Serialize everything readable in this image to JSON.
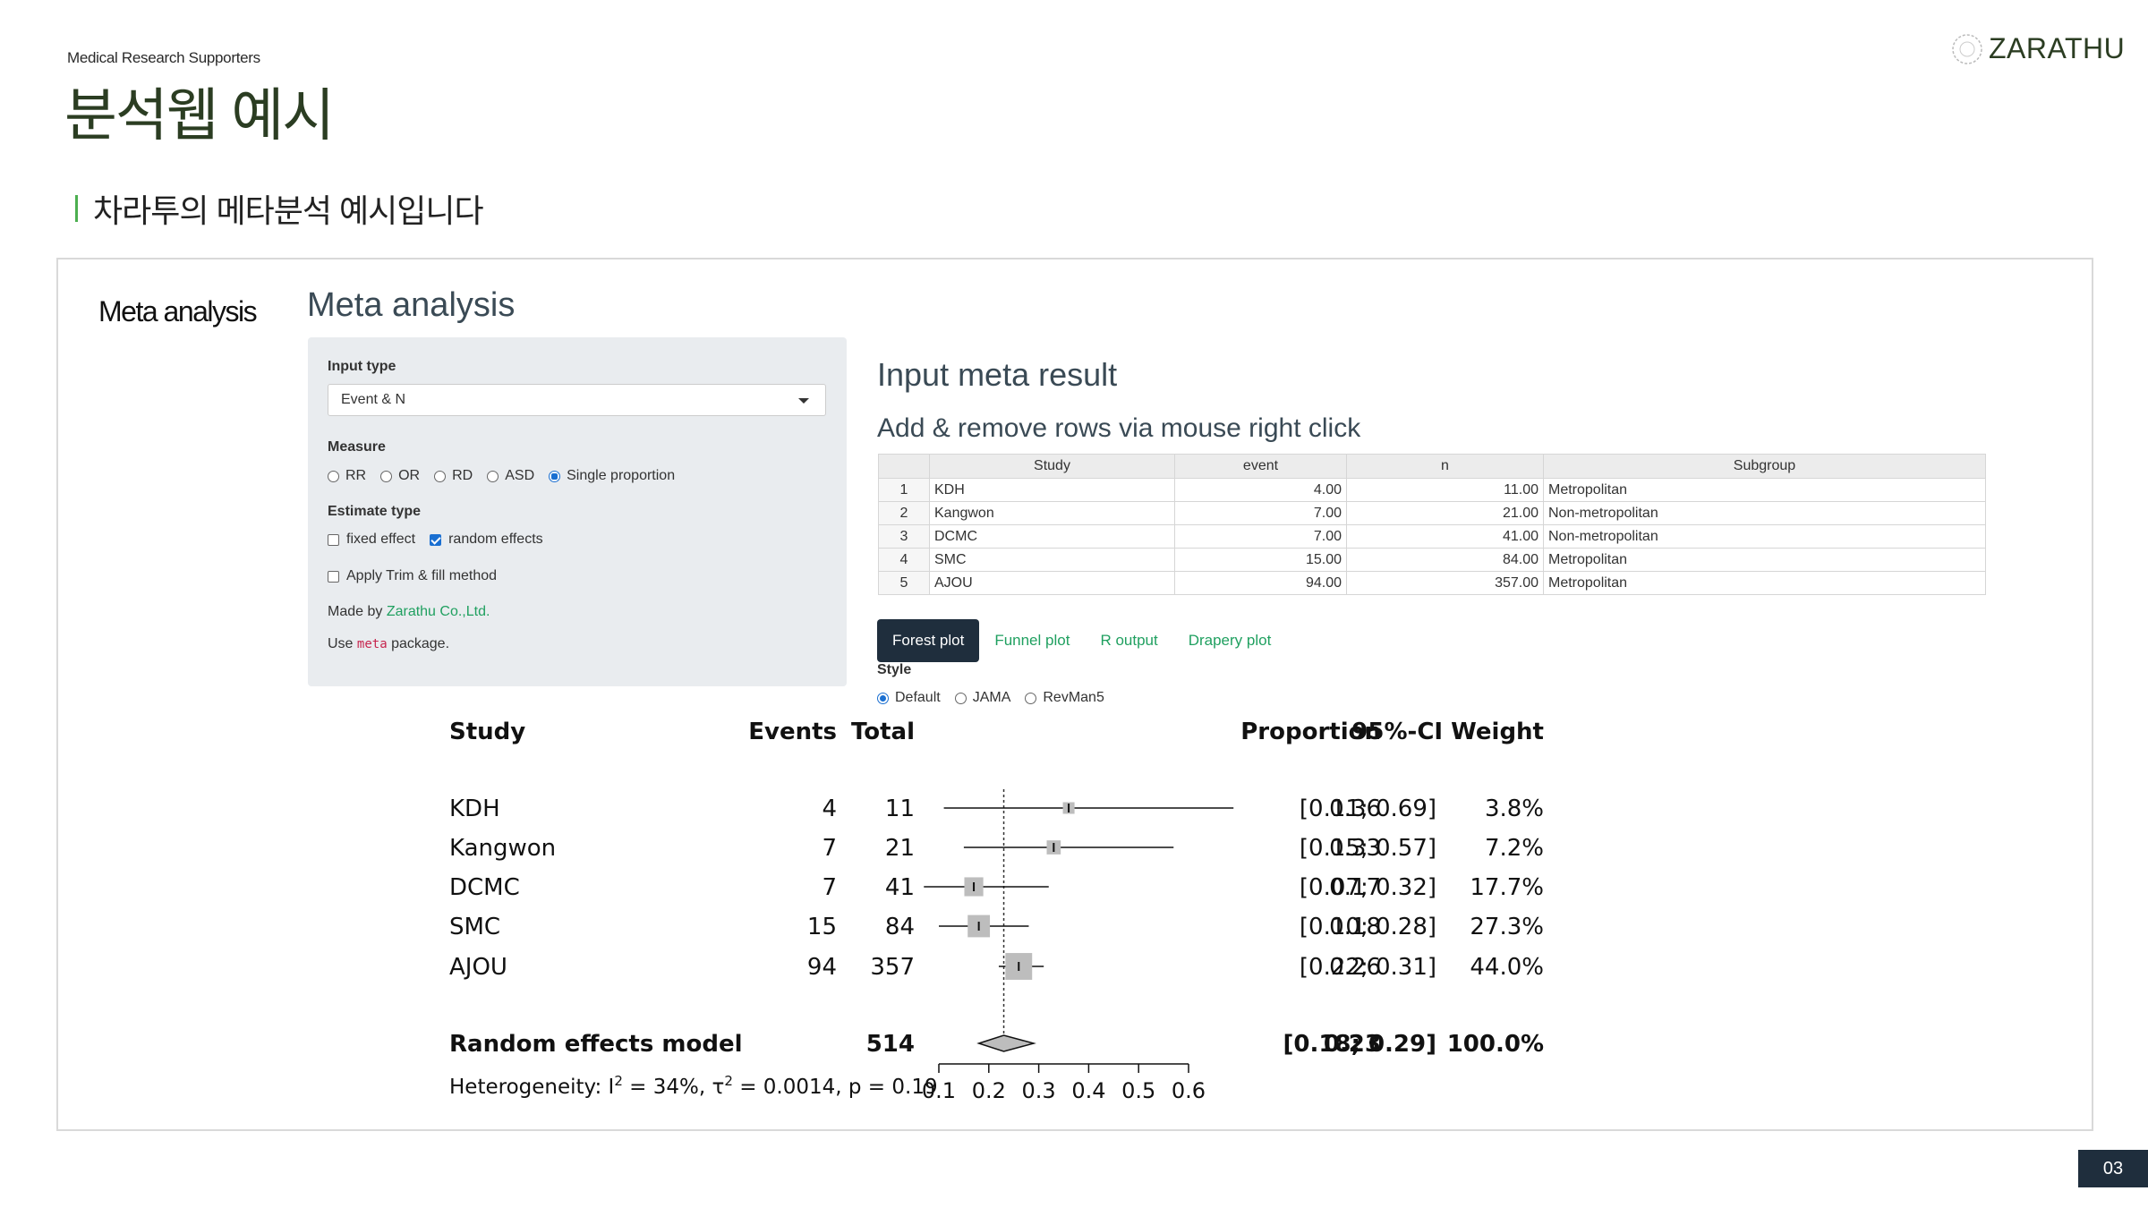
{
  "header": {
    "tagline": "Medical Research Supporters",
    "title": "분석웹 예시",
    "logo_text": "ZARATHU",
    "section_text": "차라투의 메타분석 예시입니다"
  },
  "sidebar": {
    "label": "Meta analysis"
  },
  "app": {
    "title": "Meta analysis",
    "input_type_label": "Input type",
    "input_type_value": "Event & N",
    "measure_label": "Measure",
    "measure_options": [
      "RR",
      "OR",
      "RD",
      "ASD",
      "Single proportion"
    ],
    "measure_selected": "Single proportion",
    "estimate_label": "Estimate type",
    "estimate_options": [
      {
        "label": "fixed effect",
        "checked": false
      },
      {
        "label": "random effects",
        "checked": true
      }
    ],
    "trim_fill_label": "Apply Trim & fill method",
    "made_by_prefix": "Made by ",
    "made_by_link": "Zarathu Co.,Ltd.",
    "use_prefix": "Use ",
    "use_code": "meta",
    "use_suffix": " package."
  },
  "result": {
    "title": "Input meta result",
    "subtitle": "Add & remove rows via mouse right click",
    "columns": [
      "Study",
      "event",
      "n",
      "Subgroup"
    ],
    "rows": [
      {
        "idx": "1",
        "study": "KDH",
        "event": "4.00",
        "n": "11.00",
        "subgroup": "Metropolitan"
      },
      {
        "idx": "2",
        "study": "Kangwon",
        "event": "7.00",
        "n": "21.00",
        "subgroup": "Non-metropolitan"
      },
      {
        "idx": "3",
        "study": "DCMC",
        "event": "7.00",
        "n": "41.00",
        "subgroup": "Non-metropolitan"
      },
      {
        "idx": "4",
        "study": "SMC",
        "event": "15.00",
        "n": "84.00",
        "subgroup": "Metropolitan"
      },
      {
        "idx": "5",
        "study": "AJOU",
        "event": "94.00",
        "n": "357.00",
        "subgroup": "Metropolitan"
      }
    ],
    "tabs": [
      "Forest plot",
      "Funnel plot",
      "R output",
      "Drapery plot"
    ],
    "active_tab": "Forest plot",
    "style_label": "Style",
    "style_options": [
      "Default",
      "JAMA",
      "RevMan5"
    ],
    "style_selected": "Default"
  },
  "chart_data": {
    "type": "forest",
    "headers": {
      "study": "Study",
      "events": "Events",
      "total": "Total",
      "proportion": "Proportion",
      "ci": "95%-CI",
      "weight": "Weight"
    },
    "studies": [
      {
        "name": "KDH",
        "events": "4",
        "total": "11",
        "est": 0.36,
        "lo": 0.11,
        "hi": 0.69,
        "prop": "0.36",
        "ci": "[0.11; 0.69]",
        "weight": "3.8%",
        "w": 3.8
      },
      {
        "name": "Kangwon",
        "events": "7",
        "total": "21",
        "est": 0.33,
        "lo": 0.15,
        "hi": 0.57,
        "prop": "0.33",
        "ci": "[0.15; 0.57]",
        "weight": "7.2%",
        "w": 7.2
      },
      {
        "name": "DCMC",
        "events": "7",
        "total": "41",
        "est": 0.17,
        "lo": 0.07,
        "hi": 0.32,
        "prop": "0.17",
        "ci": "[0.07; 0.32]",
        "weight": "17.7%",
        "w": 17.7
      },
      {
        "name": "SMC",
        "events": "15",
        "total": "84",
        "est": 0.18,
        "lo": 0.1,
        "hi": 0.28,
        "prop": "0.18",
        "ci": "[0.10; 0.28]",
        "weight": "27.3%",
        "w": 27.3
      },
      {
        "name": "AJOU",
        "events": "94",
        "total": "357",
        "est": 0.26,
        "lo": 0.22,
        "hi": 0.31,
        "prop": "0.26",
        "ci": "[0.22; 0.31]",
        "weight": "44.0%",
        "w": 44.0
      }
    ],
    "pooled": {
      "name": "Random effects model",
      "total": "514",
      "est": 0.23,
      "lo": 0.18,
      "hi": 0.29,
      "prop": "0.23",
      "ci": "[0.18; 0.29]",
      "weight": "100.0%"
    },
    "heterogeneity_prefix": "Heterogeneity: I",
    "heterogeneity_mid": " = 34%, τ",
    "heterogeneity_suffix": " = 0.0014, p = 0.19",
    "sup": "2",
    "xticks": [
      0.1,
      0.2,
      0.3,
      0.4,
      0.5,
      0.6
    ],
    "xlim": [
      0.1,
      0.6
    ],
    "ref_line": 0.23
  },
  "footer": {
    "page": "03"
  }
}
